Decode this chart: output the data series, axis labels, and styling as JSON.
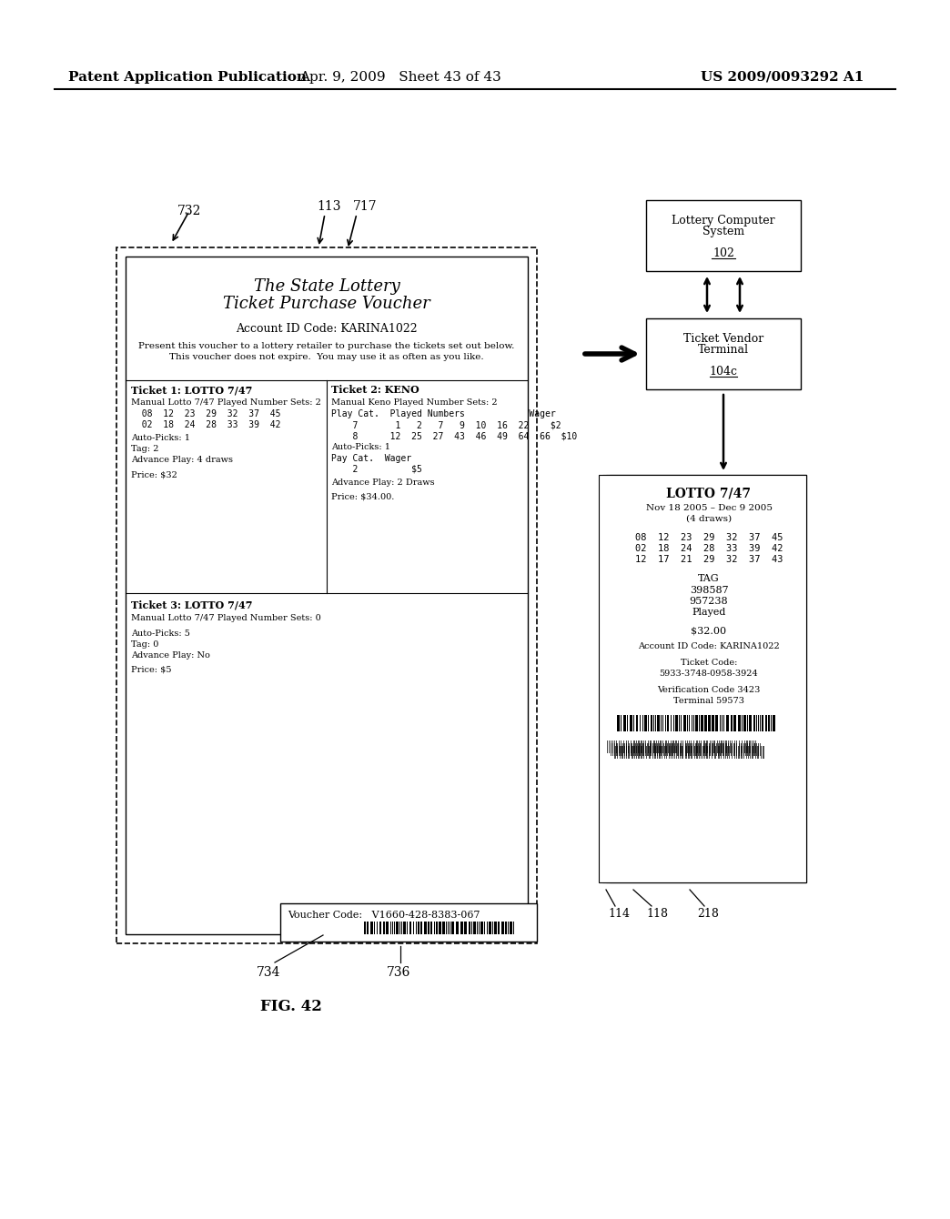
{
  "header_left": "Patent Application Publication",
  "header_center": "Apr. 9, 2009   Sheet 43 of 43",
  "header_right": "US 2009/0093292 A1",
  "fig_label": "FIG. 42",
  "voucher_title1": "The State Lottery",
  "voucher_title2": "Ticket Purchase Voucher",
  "voucher_account": "Account ID Code: KARINA1022",
  "voucher_present1": "Present this voucher to a lottery retailer to purchase the tickets set out below.",
  "voucher_present2": "This voucher does not expire.  You may use it as often as you like.",
  "ticket1_header": "Ticket 1: LOTTO 7/47",
  "ticket1_line1": "Manual Lotto 7/47 Played Number Sets: 2",
  "ticket1_line2": "  08  12  23  29  32  37  45",
  "ticket1_line3": "  02  18  24  28  33  39  42",
  "ticket1_line4": "Auto-Picks: 1",
  "ticket1_line5": "Tag: 2",
  "ticket1_line6": "Advance Play: 4 draws",
  "ticket1_line8": "Price: $32",
  "ticket2_header": "Ticket 2: KENO",
  "ticket2_line1": "Manual Keno Played Number Sets: 2",
  "ticket2_line2": "Play Cat.  Played Numbers            Wager",
  "ticket2_line3": "    7       1   2   7   9  10  16  22    $2",
  "ticket2_line4": "    8      12  25  27  43  46  49  64  66  $10",
  "ticket2_line5": "Auto-Picks: 1",
  "ticket2_line6": "Pay Cat.  Wager",
  "ticket2_line7": "    2          $5",
  "ticket2_line9": "Advance Play: 2 Draws",
  "ticket2_line11": "Price: $34.00.",
  "ticket3_header": "Ticket 3: LOTTO 7/47",
  "ticket3_line1": "Manual Lotto 7/47 Played Number Sets: 0",
  "ticket3_line3": "Auto-Picks: 5",
  "ticket3_line4": "Tag: 0",
  "ticket3_line5": "Advance Play: No",
  "ticket3_line7": "Price: $5",
  "voucher_code_label": "Voucher Code:",
  "voucher_code_value": "V1660-428-8383-067",
  "lottery_computer_label1": "Lottery Computer",
  "lottery_computer_label2": "System",
  "lottery_computer_ref": "102",
  "ticket_vendor_label1": "Ticket Vendor",
  "ticket_vendor_label2": "Terminal",
  "ticket_vendor_ref": "104c",
  "lotto_ticket_title": "LOTTO 7/47",
  "lotto_date": "Nov 18 2005 – Dec 9 2005",
  "lotto_draws": "(4 draws)",
  "lotto_nums1": "08  12  23  29  32  37  45",
  "lotto_nums2": "02  18  24  28  33  39  42",
  "lotto_nums3": "12  17  21  29  32  37  43",
  "lotto_tag": "TAG",
  "lotto_tag1": "398587",
  "lotto_tag2": "957238",
  "lotto_played": "Played",
  "lotto_price": "$32.00",
  "lotto_account": "Account ID Code: KARINA1022",
  "lotto_ticket_code_label": "Ticket Code:",
  "lotto_ticket_code": "5933-3748-0958-3924",
  "lotto_verification": "Verification Code 3423",
  "lotto_terminal": "Terminal 59573",
  "ref_732": "732",
  "ref_113": "113",
  "ref_717": "717",
  "ref_734": "734",
  "ref_736": "736",
  "ref_114": "114",
  "ref_118": "118",
  "ref_218": "218",
  "bg_color": "#ffffff"
}
